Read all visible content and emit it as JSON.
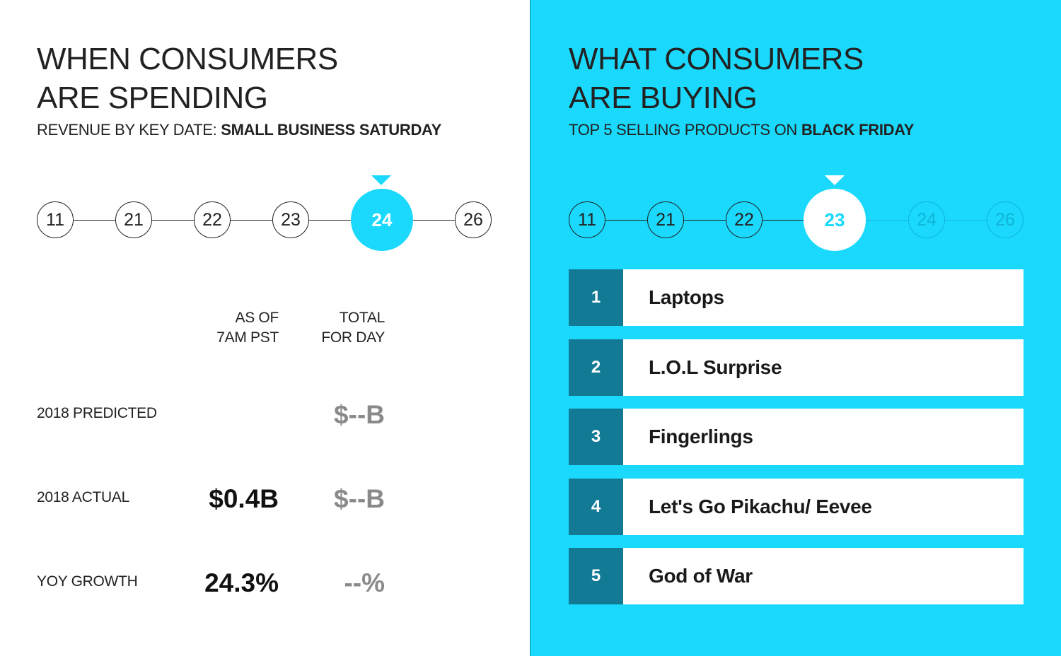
{
  "left": {
    "title_line1": "WHEN CONSUMERS",
    "title_line2": "ARE SPENDING",
    "subtitle_prefix": "REVENUE BY KEY DATE: ",
    "subtitle_bold": "SMALL BUSINESS SATURDAY",
    "dates": [
      "11",
      "21",
      "22",
      "23",
      "24",
      "26"
    ],
    "active_date": "24",
    "col1_line1": "AS OF",
    "col1_line2": "7AM PST",
    "col2_line1": "TOTAL",
    "col2_line2": "FOR DAY",
    "rows": [
      {
        "label": "2018 PREDICTED",
        "as_of": "",
        "total": "$--B"
      },
      {
        "label": "2018 ACTUAL",
        "as_of": "$0.4B",
        "total": "$--B"
      },
      {
        "label": "YOY GROWTH",
        "as_of": "24.3%",
        "total": "--%"
      }
    ]
  },
  "right": {
    "title_line1": "WHAT CONSUMERS",
    "title_line2": "ARE BUYING",
    "subtitle_prefix": "TOP 5 SELLING PRODUCTS ON ",
    "subtitle_bold": "BLACK FRIDAY",
    "dates": [
      "11",
      "21",
      "22",
      "23",
      "24",
      "26"
    ],
    "active_date": "23",
    "products": [
      {
        "rank": "1",
        "name": "Laptops"
      },
      {
        "rank": "2",
        "name": "L.O.L Surprise"
      },
      {
        "rank": "3",
        "name": "Fingerlings"
      },
      {
        "rank": "4",
        "name": "Let's Go Pikachu/ Eevee"
      },
      {
        "rank": "5",
        "name": "God of War"
      }
    ]
  },
  "colors": {
    "accent": "#1ad9fc",
    "rank_bg": "#137a96",
    "muted_value": "#8a8a8a"
  }
}
